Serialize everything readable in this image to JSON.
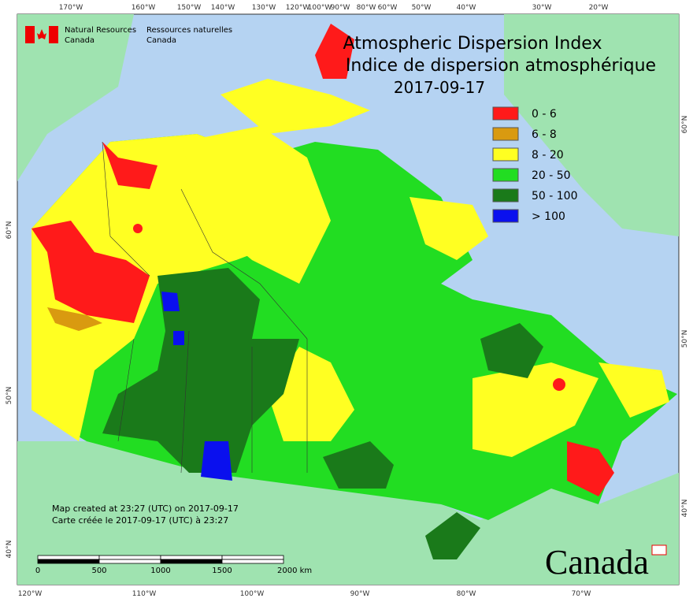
{
  "header": {
    "org_en": "Natural Resources",
    "org_en2": "Canada",
    "org_fr": "Ressources naturelles",
    "org_fr2": "Canada"
  },
  "title": {
    "line1": "Atmospheric Dispersion Index",
    "line2": "Indice de dispersion atmosphérique",
    "date": "2017-09-17"
  },
  "legend": [
    {
      "label": "0 - 6",
      "color": "#ff1a1a"
    },
    {
      "label": "6 - 8",
      "color": "#d99a10"
    },
    {
      "label": "8 - 20",
      "color": "#ffff22"
    },
    {
      "label": "20 - 50",
      "color": "#22dd22"
    },
    {
      "label": "50 - 100",
      "color": "#1a7a1a"
    },
    {
      "label": "> 100",
      "color": "#0a10ee"
    }
  ],
  "graticule": {
    "top": [
      "170°W",
      "160°W",
      "150°W",
      "140°W",
      "130°W",
      "120°W",
      "100°W",
      "90°W",
      "80°W",
      "60°W",
      "50°W",
      "40°W",
      "30°W",
      "20°W"
    ],
    "bottom": [
      "120°W",
      "110°W",
      "100°W",
      "90°W",
      "80°W",
      "70°W"
    ],
    "left": [
      "60°N",
      "50°N",
      "40°N"
    ],
    "right": [
      "60°N",
      "50°N",
      "40°N"
    ]
  },
  "credits": [
    "Map created at 23:27 (UTC) on 2017-09-17",
    "Carte créée le 2017-09-17 (UTC) à 23:27"
  ],
  "scale": [
    "0",
    "500",
    "1000",
    "1500",
    "2000 km"
  ],
  "wordmark": "Canada"
}
